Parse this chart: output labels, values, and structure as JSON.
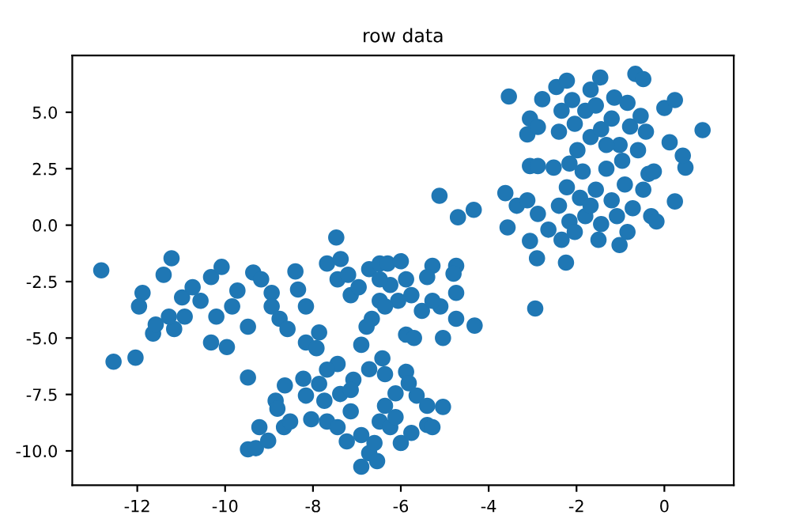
{
  "chart_data": {
    "type": "scatter",
    "title": "row data",
    "color": "#1f77b4",
    "marker": "circle",
    "xlim": [
      -13.48,
      1.58
    ],
    "ylim": [
      -11.52,
      7.52
    ],
    "xticks": [
      -12,
      -10,
      -8,
      -6,
      -4,
      -2,
      0
    ],
    "yticks": [
      {
        "value": -10,
        "label": "-10.0"
      },
      -7.5,
      {
        "value": -5,
        "label": "-5.0"
      },
      -2.5,
      {
        "value": 0,
        "label": "0.0"
      },
      2.5,
      {
        "value": 5,
        "label": "5.0"
      }
    ],
    "x": [
      -12.82,
      -12.54,
      -12.04,
      -11.22,
      -11.4,
      -11.88,
      -11.96,
      -11.64,
      -11.58,
      -11.16,
      -10.98,
      -10.74,
      -10.56,
      -10.32,
      -10.08,
      -10.32,
      -9.96,
      -10.2,
      -9.84,
      -9.72,
      -9.48,
      -9.36,
      -9.18,
      -8.94,
      -8.94,
      -8.76,
      -8.58,
      -8.4,
      -8.34,
      -8.16,
      -8.16,
      -7.92,
      -7.86,
      -7.68,
      -7.47,
      -7.37,
      -7.44,
      -7.14,
      -7.2,
      -6.9,
      -6.72,
      -6.48,
      -6.3,
      -6.0,
      -6.24,
      -6.48,
      -6.66,
      -5.88,
      -5.76,
      -5.52,
      -5.88,
      -5.7,
      -5.28,
      -5.4,
      -5.1,
      -5.04,
      -4.74,
      -4.8,
      -4.74,
      -4.74,
      -4.32,
      -6.06,
      -6.96,
      -6.48,
      -6.36,
      -5.28,
      -6.78,
      -10.92,
      -11.28,
      -5.12,
      -4.7,
      -4.34,
      -3.62,
      -3.57,
      -3.36,
      -3.06,
      -2.9,
      -2.94,
      -2.24,
      -9.48,
      -9.22,
      -9.48,
      -9.3,
      -9.02,
      -8.85,
      -8.81,
      -8.64,
      -8.66,
      -8.52,
      -8.22,
      -8.16,
      -8.04,
      -7.86,
      -7.74,
      -7.68,
      -7.44,
      -7.44,
      -7.23,
      -7.38,
      -7.14,
      -7.08,
      -6.9,
      -6.9,
      -6.72,
      -6.72,
      -6.54,
      -6.6,
      -6.48,
      -6.42,
      -6.36,
      -6.36,
      -6.24,
      -6.12,
      -6.0,
      -5.88,
      -5.82,
      -5.76,
      -5.64,
      -5.4,
      -5.4,
      -5.04,
      -5.28,
      -6.12,
      -7.14,
      -7.68,
      -3.06,
      -2.88,
      -2.52,
      -3.12,
      -2.88,
      -2.64,
      -2.4,
      -2.34,
      -2.22,
      -2.16,
      -1.92,
      -1.86,
      -1.8,
      -1.56,
      -1.5,
      -1.44,
      -1.32,
      -1.2,
      -1.08,
      -1.02,
      -0.9,
      -0.84,
      -0.72,
      -0.48,
      -0.36,
      -0.24,
      -0.3,
      -0.18,
      0.24,
      0.48,
      0.42,
      -2.04,
      -1.68,
      -2.16,
      -3.54,
      -3.12,
      -3.06,
      -2.78,
      -2.88,
      -2.46,
      -2.22,
      -2.34,
      -2.4,
      -2.1,
      -2.04,
      -1.8,
      -1.68,
      -1.46,
      -1.56,
      -1.44,
      -1.14,
      -1.2,
      -1.02,
      -0.84,
      -0.78,
      -0.66,
      -0.48,
      -0.54,
      -0.6,
      -0.42,
      0.0,
      0.24,
      0.12,
      0.87,
      -0.96,
      -1.32,
      -1.98,
      -1.68
    ],
    "values": [
      -2.0,
      -6.05,
      -5.87,
      -1.47,
      -2.2,
      -3.0,
      -3.6,
      -4.8,
      -4.4,
      -4.6,
      -3.2,
      -2.75,
      -3.35,
      -2.3,
      -1.85,
      -5.2,
      -5.4,
      -4.05,
      -3.6,
      -2.9,
      -4.5,
      -2.1,
      -2.4,
      -3.0,
      -3.6,
      -4.15,
      -4.6,
      -2.05,
      -2.85,
      -3.6,
      -5.2,
      -5.45,
      -4.75,
      -1.7,
      -0.55,
      -1.5,
      -2.4,
      -3.1,
      -2.2,
      -5.3,
      -1.95,
      -1.7,
      -1.7,
      -1.6,
      -2.65,
      -3.35,
      -4.15,
      -2.4,
      -3.1,
      -3.8,
      -4.85,
      -5.0,
      -1.8,
      -2.3,
      -3.6,
      -5.0,
      -1.8,
      -2.15,
      -3.0,
      -4.15,
      -4.45,
      -3.35,
      -2.75,
      -2.4,
      -3.6,
      -3.35,
      -4.5,
      -4.05,
      -4.05,
      1.3,
      0.35,
      0.68,
      1.42,
      -0.1,
      0.86,
      -0.7,
      -1.47,
      -3.69,
      -1.66,
      -6.75,
      -8.95,
      -9.93,
      -9.88,
      -9.55,
      -7.78,
      -8.13,
      -7.1,
      -8.95,
      -8.7,
      -6.8,
      -7.55,
      -8.6,
      -7.03,
      -7.78,
      -8.7,
      -6.15,
      -8.95,
      -9.58,
      -7.48,
      -8.25,
      -6.85,
      -9.3,
      -10.7,
      -6.38,
      -10.1,
      -10.45,
      -9.65,
      -8.7,
      -5.9,
      -6.6,
      -8.0,
      -8.95,
      -7.45,
      -9.65,
      -6.5,
      -7.0,
      -9.2,
      -7.55,
      -8.85,
      -8.0,
      -8.05,
      -8.95,
      -8.5,
      -7.3,
      -6.4,
      2.62,
      2.62,
      2.55,
      1.1,
      0.5,
      -0.2,
      0.86,
      -0.65,
      1.68,
      0.16,
      1.21,
      2.38,
      0.4,
      1.57,
      -0.65,
      0.05,
      2.5,
      1.1,
      0.4,
      -0.88,
      1.8,
      -0.3,
      0.75,
      1.57,
      2.27,
      2.38,
      0.4,
      0.16,
      1.05,
      2.55,
      3.08,
      -0.3,
      0.86,
      2.73,
      5.7,
      4.02,
      4.72,
      5.58,
      4.35,
      6.12,
      6.4,
      5.07,
      4.14,
      5.54,
      4.49,
      5.07,
      3.9,
      6.54,
      5.3,
      4.25,
      5.65,
      4.72,
      3.55,
      5.42,
      4.37,
      6.7,
      6.47,
      4.84,
      3.32,
      4.14,
      5.19,
      5.54,
      3.67,
      4.21,
      2.85,
      3.55,
      3.32,
      6.0
    ]
  }
}
